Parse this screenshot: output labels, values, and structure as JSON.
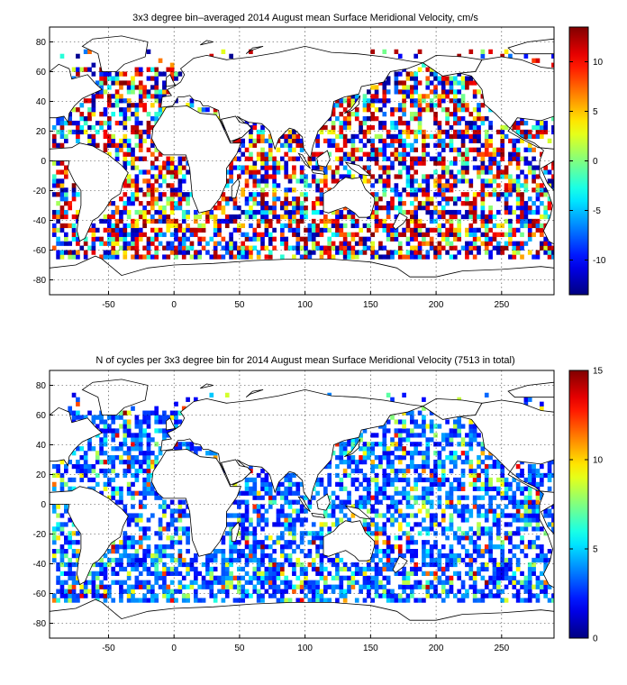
{
  "panels": [
    {
      "id": "velocity",
      "title": "3x3 degree bin–averaged 2014 August mean Surface Meridional Velocity, cm/s",
      "x_ticks": [
        "-50",
        "0",
        "50",
        "100",
        "150",
        "200",
        "250"
      ],
      "y_ticks": [
        "80",
        "60",
        "40",
        "20",
        "0",
        "-20",
        "-40",
        "-60",
        "-80"
      ],
      "colorbar": {
        "ticks": [
          "10",
          "5",
          "0",
          "-5",
          "-10"
        ],
        "range": [
          -13.5,
          13.5
        ],
        "colormap": "jet",
        "top_color": "#7f0000",
        "bottom_color": "#00007f"
      }
    },
    {
      "id": "counts",
      "title": "N of cycles per 3x3 degree bin for 2014 August mean Surface Meridional Velocity (7513 in total)",
      "x_ticks": [
        "-50",
        "0",
        "50",
        "100",
        "150",
        "200",
        "250"
      ],
      "y_ticks": [
        "80",
        "60",
        "40",
        "20",
        "0",
        "-20",
        "-40",
        "-60",
        "-80"
      ],
      "colorbar": {
        "ticks": [
          "15",
          "10",
          "5",
          "0"
        ],
        "range": [
          0,
          15
        ],
        "colormap": "jet",
        "top_color": "#7f0000",
        "bottom_color": "#00007f"
      }
    }
  ],
  "chart_data": [
    {
      "type": "heatmap",
      "title": "3x3 degree bin–averaged 2014 August mean Surface Meridional Velocity, cm/s",
      "xlabel": "",
      "ylabel": "",
      "xlim": [
        -95,
        290
      ],
      "ylim": [
        -90,
        90
      ],
      "bin_size_deg": 3,
      "units": "cm/s",
      "value_range": [
        -13.5,
        13.5
      ],
      "grid": true,
      "colorbar": "right",
      "note": "bins coloured by meridional velocity"
    },
    {
      "type": "heatmap",
      "title": "N of cycles per 3x3 degree bin for 2014 August mean Surface Meridional Velocity (7513 in total)",
      "xlabel": "",
      "ylabel": "",
      "xlim": [
        -95,
        290
      ],
      "ylim": [
        -90,
        90
      ],
      "bin_size_deg": 3,
      "value_range": [
        0,
        15
      ],
      "total": 7513,
      "grid": true,
      "colorbar": "right"
    }
  ]
}
